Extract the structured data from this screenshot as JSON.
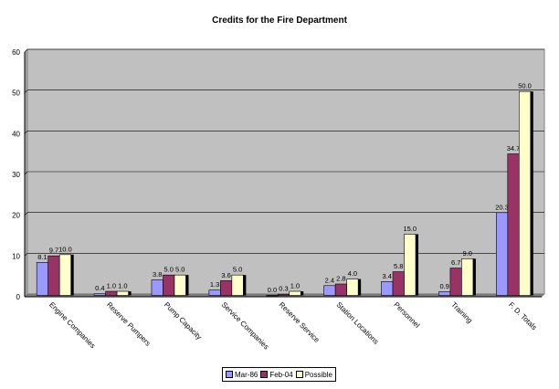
{
  "chart_data": {
    "type": "bar",
    "title": "Credits for the Fire Department",
    "categories": [
      "Engine Companies",
      "Reserve Pumpers",
      "Pump Capacity",
      "Service Companies",
      "Reserve Service",
      "Station Locations",
      "Personnel",
      "Training",
      "F. D. Totals"
    ],
    "series": [
      {
        "name": "Mar-86",
        "color": "#9999ff",
        "values": [
          8.1,
          0.4,
          3.8,
          1.3,
          0.0,
          2.4,
          3.4,
          0.9,
          20.3
        ]
      },
      {
        "name": "Feb-04",
        "color": "#993366",
        "values": [
          9.7,
          1.0,
          5.0,
          3.6,
          0.3,
          2.8,
          5.8,
          6.7,
          34.7
        ]
      },
      {
        "name": "Possible",
        "color": "#ffffcc",
        "values": [
          10.0,
          1.0,
          5.0,
          5.0,
          1.0,
          4.0,
          15.0,
          9.0,
          50.0
        ]
      }
    ],
    "ylim": [
      0,
      60
    ],
    "yticks": [
      0,
      10,
      20,
      30,
      40,
      50,
      60
    ],
    "plot_background": "#c0c0c0",
    "grid": true,
    "legend_position": "bottom",
    "label_decimals": 1
  }
}
